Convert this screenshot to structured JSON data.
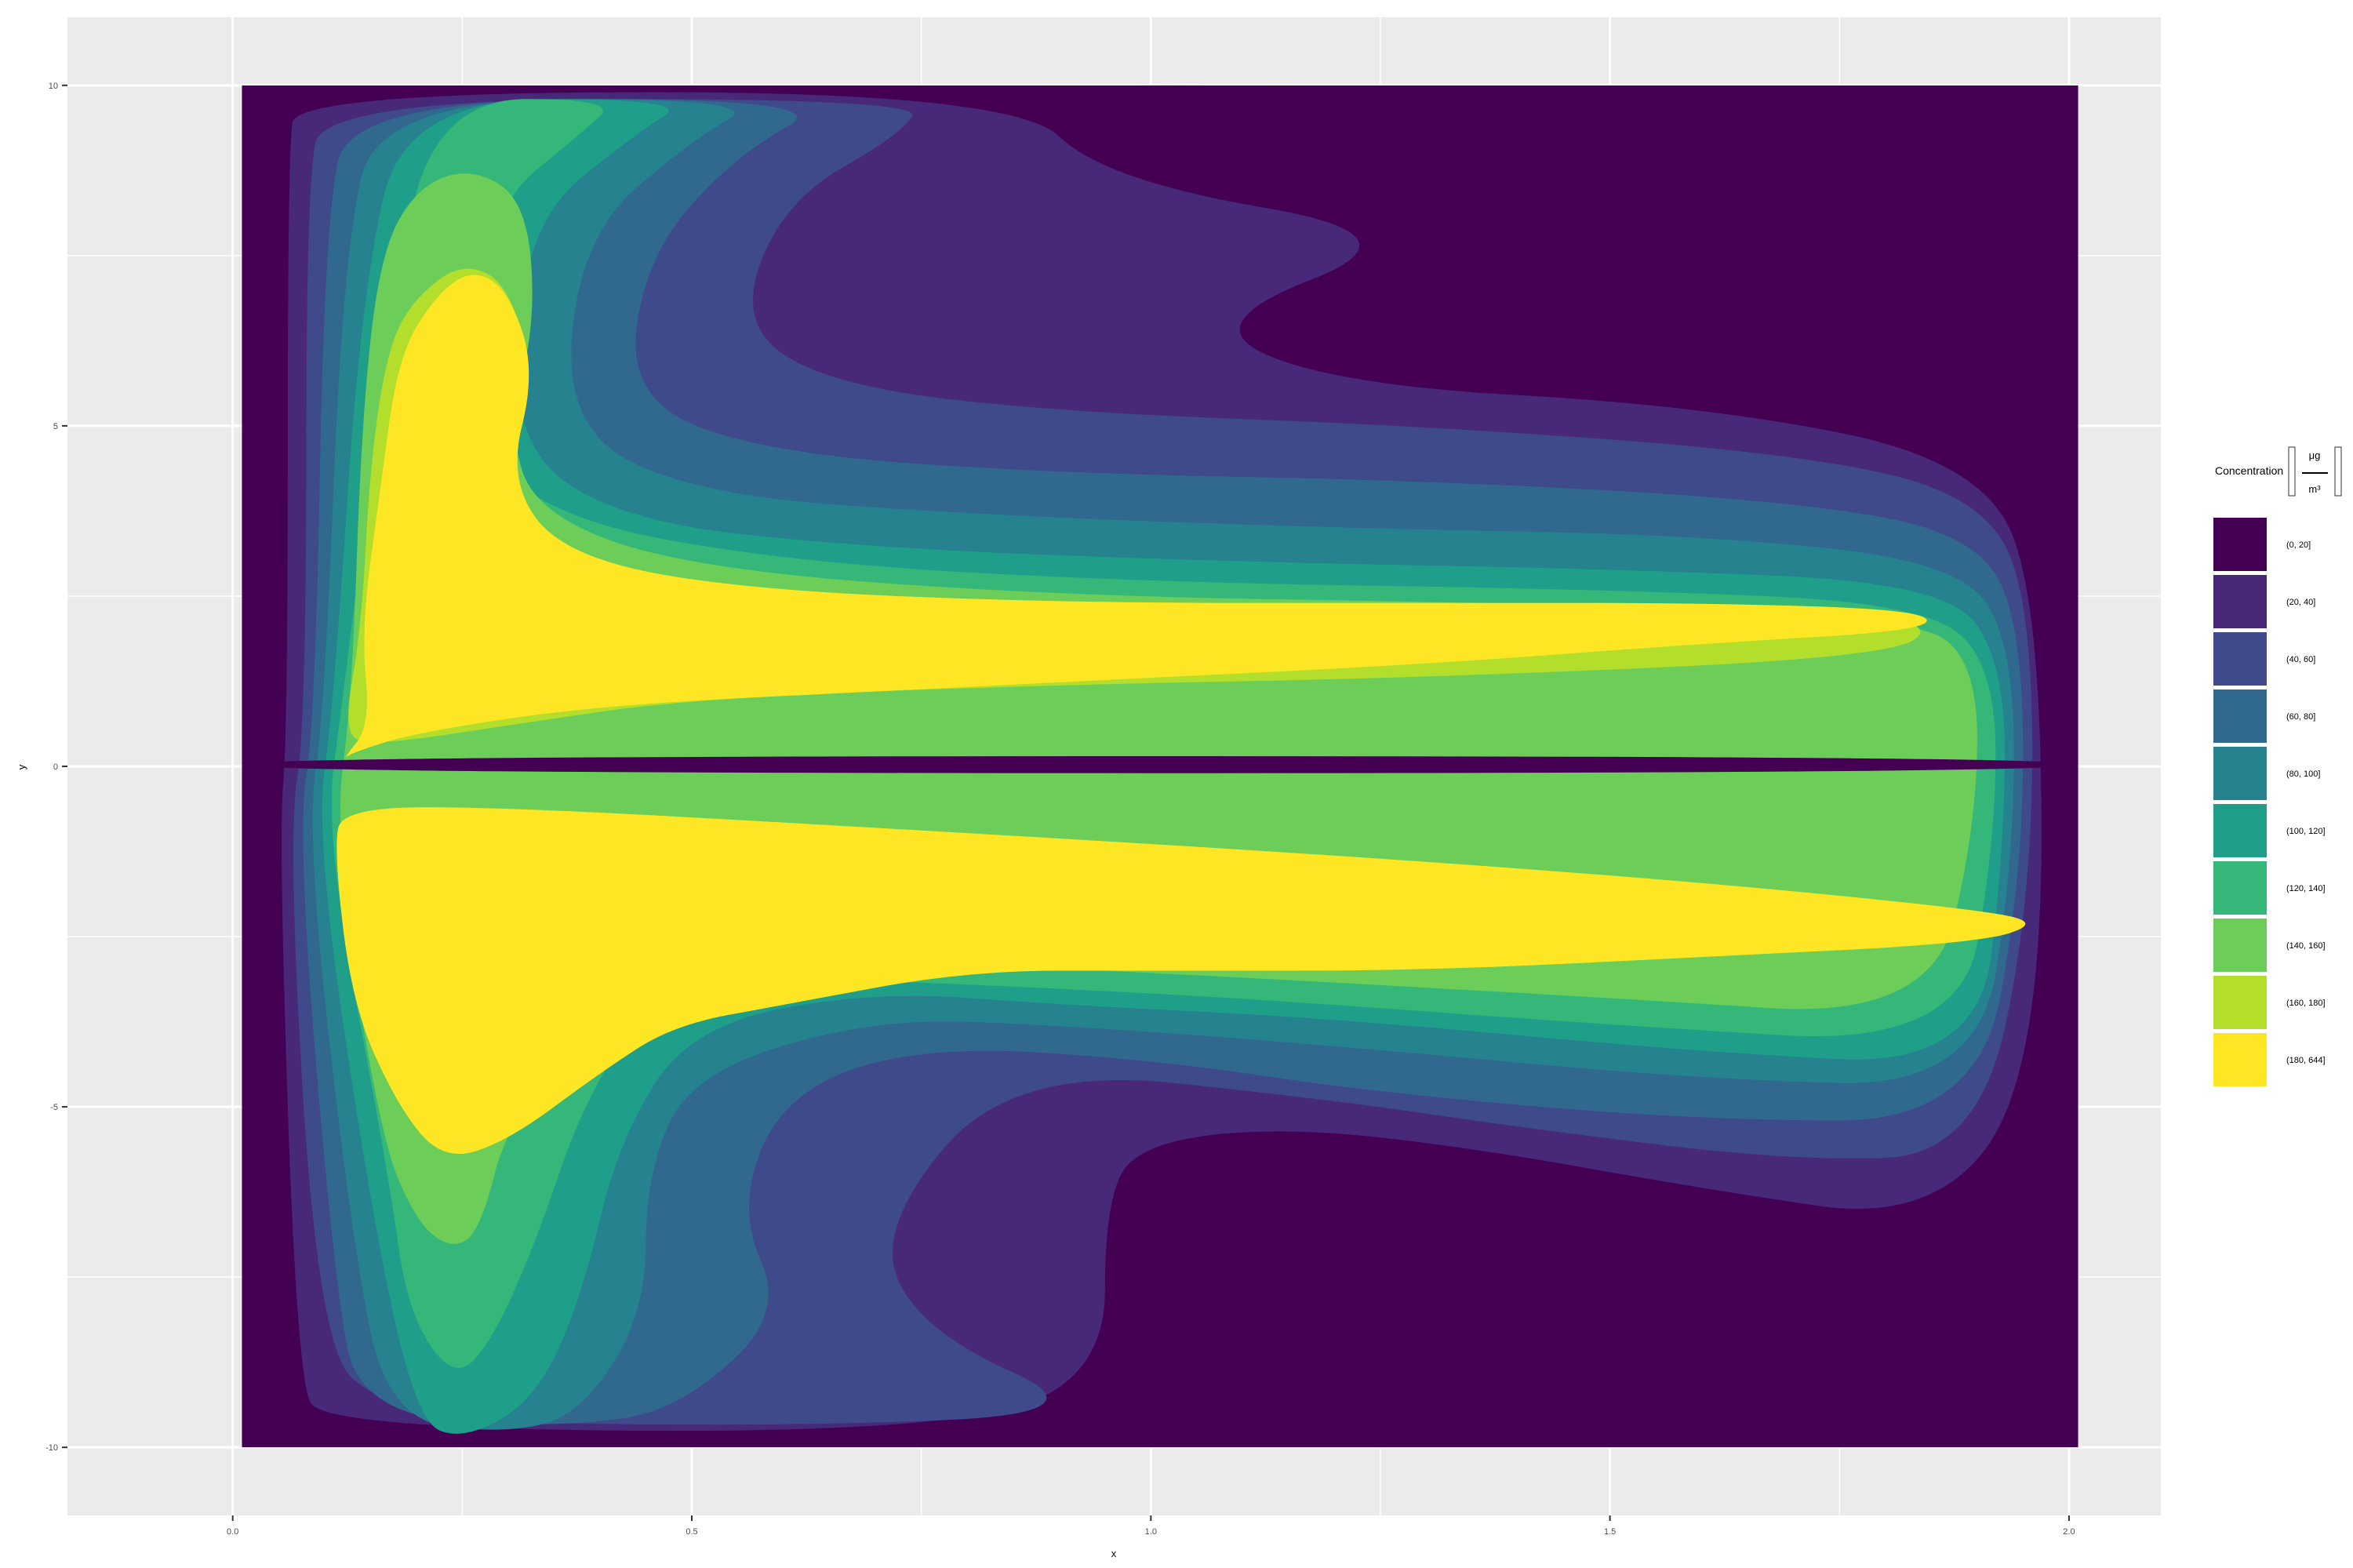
{
  "chart_data": {
    "type": "filled_contour",
    "xlabel": "x",
    "ylabel": "y",
    "xlim": [
      -0.18,
      2.1
    ],
    "ylim": [
      -11.0,
      11.0
    ],
    "xticks": [
      0.0,
      0.5,
      1.0,
      1.5,
      2.0
    ],
    "xtick_labels": [
      "0.0",
      "0.5",
      "1.0",
      "1.5",
      "2.0"
    ],
    "yticks": [
      -10,
      -5,
      0,
      5,
      10
    ],
    "ytick_labels": [
      "-10",
      "-5",
      "0",
      "5",
      "10"
    ],
    "data_extent": {
      "x": [
        0.01,
        2.01
      ],
      "y": [
        -10,
        10
      ]
    },
    "grid": true,
    "legend": {
      "title": "Concentration",
      "unit_numerator": "μg",
      "unit_denominator": "m³",
      "placement": "right",
      "levels": [
        {
          "label": "(0, 20]",
          "color": "#440154"
        },
        {
          "label": "(20, 40]",
          "color": "#482878"
        },
        {
          "label": "(40, 60]",
          "color": "#3E4A89"
        },
        {
          "label": "(60, 80]",
          "color": "#31688E"
        },
        {
          "label": "(80, 100]",
          "color": "#26828E"
        },
        {
          "label": "(100, 120]",
          "color": "#1F9E89"
        },
        {
          "label": "(120, 140]",
          "color": "#35B779"
        },
        {
          "label": "(140, 160]",
          "color": "#6DCD59"
        },
        {
          "label": "(160, 180]",
          "color": "#B4DE2C"
        },
        {
          "label": "(180, 644]",
          "color": "#FDE725"
        }
      ]
    },
    "contour_bands": [
      {
        "level": 1,
        "points": [
          [
            0.05,
            10
          ],
          [
            2.0,
            10
          ],
          [
            2.0,
            0.8
          ],
          [
            1.9,
            1.2
          ],
          [
            1.6,
            5.2
          ],
          [
            1.3,
            7.5
          ],
          [
            1.0,
            8.5
          ],
          [
            0.8,
            9.2
          ],
          [
            0.5,
            9.8
          ],
          [
            0.1,
            9.9
          ],
          [
            0.05,
            9.0
          ],
          [
            0.03,
            0.2
          ],
          [
            0.04,
            -0.3
          ],
          [
            0.04,
            -9.8
          ],
          [
            1.9,
            -9.9
          ],
          [
            2.0,
            -9.9
          ],
          [
            2.0,
            -1.0
          ],
          [
            1.9,
            -6.8
          ],
          [
            1.6,
            -7.0
          ],
          [
            1.3,
            -6.3
          ],
          [
            1.0,
            -6.0
          ],
          [
            0.8,
            -5.5
          ],
          [
            0.5,
            -4.7
          ],
          [
            0.15,
            -2.5
          ],
          [
            0.1,
            0.1
          ]
        ]
      },
      {
        "level": 2,
        "points": [
          [
            0.07,
            9.9
          ],
          [
            0.85,
            9.9
          ],
          [
            0.95,
            8.6
          ],
          [
            1.3,
            7.8
          ],
          [
            1.05,
            6.5
          ],
          [
            1.2,
            5.6
          ],
          [
            1.6,
            5.3
          ],
          [
            1.9,
            4.5
          ],
          [
            1.97,
            2.5
          ],
          [
            1.97,
            -4.5
          ],
          [
            1.85,
            -6.7
          ],
          [
            1.6,
            -6.2
          ],
          [
            1.35,
            -5.6
          ],
          [
            1.15,
            -5.3
          ],
          [
            1.0,
            -5.5
          ],
          [
            0.95,
            -6.2
          ],
          [
            0.95,
            -9.2
          ],
          [
            0.7,
            -9.8
          ],
          [
            0.1,
            -9.7
          ],
          [
            0.07,
            -9.0
          ],
          [
            0.05,
            -1.0
          ],
          [
            0.06,
            0.5
          ],
          [
            0.06,
            9.0
          ]
        ]
      },
      {
        "level": 3,
        "points": [
          [
            0.1,
            9.8
          ],
          [
            0.75,
            9.8
          ],
          [
            0.73,
            9.3
          ],
          [
            0.6,
            8.3
          ],
          [
            0.55,
            6.5
          ],
          [
            0.65,
            5.6
          ],
          [
            0.9,
            5.2
          ],
          [
            1.3,
            5.0
          ],
          [
            1.7,
            4.6
          ],
          [
            1.9,
            4.0
          ],
          [
            1.96,
            2.5
          ],
          [
            1.96,
            -2.0
          ],
          [
            1.9,
            -5.7
          ],
          [
            1.7,
            -5.8
          ],
          [
            1.4,
            -5.3
          ],
          [
            1.2,
            -4.9
          ],
          [
            0.85,
            -4.4
          ],
          [
            0.7,
            -6.8
          ],
          [
            0.75,
            -8.3
          ],
          [
            0.95,
            -9.5
          ],
          [
            0.6,
            -9.7
          ],
          [
            0.15,
            -9.6
          ],
          [
            0.09,
            -8.0
          ],
          [
            0.06,
            -1.0
          ],
          [
            0.08,
            0.6
          ],
          [
            0.08,
            8.5
          ]
        ]
      },
      {
        "level": 4,
        "points": [
          [
            0.13,
            9.8
          ],
          [
            0.66,
            9.8
          ],
          [
            0.55,
            9.0
          ],
          [
            0.45,
            7.5
          ],
          [
            0.43,
            5.4
          ],
          [
            0.58,
            4.6
          ],
          [
            0.9,
            4.3
          ],
          [
            1.3,
            4.2
          ],
          [
            1.7,
            3.9
          ],
          [
            1.9,
            3.4
          ],
          [
            1.95,
            2.0
          ],
          [
            1.95,
            -1.6
          ],
          [
            1.9,
            -5.2
          ],
          [
            1.6,
            -5.2
          ],
          [
            1.25,
            -4.8
          ],
          [
            1.0,
            -4.3
          ],
          [
            0.75,
            -4.1
          ],
          [
            0.6,
            -4.8
          ],
          [
            0.55,
            -6.5
          ],
          [
            0.6,
            -8.0
          ],
          [
            0.5,
            -9.3
          ],
          [
            0.4,
            -9.7
          ],
          [
            0.14,
            -9.6
          ],
          [
            0.11,
            -7.5
          ],
          [
            0.07,
            -1.0
          ],
          [
            0.09,
            0.7
          ],
          [
            0.1,
            8.0
          ]
        ]
      },
      {
        "level": 5,
        "points": [
          [
            0.16,
            9.8
          ],
          [
            0.58,
            9.8
          ],
          [
            0.5,
            9.2
          ],
          [
            0.38,
            7.8
          ],
          [
            0.36,
            5.0
          ],
          [
            0.5,
            4.0
          ],
          [
            0.8,
            3.7
          ],
          [
            1.2,
            3.5
          ],
          [
            1.6,
            3.4
          ],
          [
            1.88,
            3.0
          ],
          [
            1.94,
            1.8
          ],
          [
            1.94,
            -1.4
          ],
          [
            1.9,
            -4.7
          ],
          [
            1.6,
            -4.6
          ],
          [
            1.2,
            -4.1
          ],
          [
            0.9,
            -3.8
          ],
          [
            0.7,
            -3.7
          ],
          [
            0.5,
            -4.5
          ],
          [
            0.45,
            -6.0
          ],
          [
            0.45,
            -8.0
          ],
          [
            0.38,
            -9.5
          ],
          [
            0.3,
            -9.8
          ],
          [
            0.17,
            -9.6
          ],
          [
            0.13,
            -7.0
          ],
          [
            0.08,
            -1.0
          ],
          [
            0.1,
            0.8
          ],
          [
            0.12,
            7.5
          ]
        ]
      },
      {
        "level": 6,
        "points": [
          [
            0.19,
            9.8
          ],
          [
            0.5,
            9.8
          ],
          [
            0.44,
            9.3
          ],
          [
            0.32,
            8.0
          ],
          [
            0.3,
            4.8
          ],
          [
            0.42,
            3.6
          ],
          [
            0.7,
            3.2
          ],
          [
            1.1,
            3.0
          ],
          [
            1.5,
            2.9
          ],
          [
            1.86,
            2.7
          ],
          [
            1.93,
            1.6
          ],
          [
            1.93,
            -1.2
          ],
          [
            1.9,
            -4.4
          ],
          [
            1.6,
            -4.2
          ],
          [
            1.2,
            -3.7
          ],
          [
            0.9,
            -3.5
          ],
          [
            0.7,
            -3.3
          ],
          [
            0.5,
            -3.8
          ],
          [
            0.42,
            -5.5
          ],
          [
            0.38,
            -7.8
          ],
          [
            0.33,
            -9.3
          ],
          [
            0.25,
            -9.9
          ],
          [
            0.2,
            -9.6
          ],
          [
            0.15,
            -6.5
          ],
          [
            0.09,
            -1.0
          ],
          [
            0.11,
            0.9
          ],
          [
            0.14,
            7.0
          ]
        ]
      },
      {
        "level": 7,
        "points": [
          [
            0.22,
            9.8
          ],
          [
            0.42,
            9.8
          ],
          [
            0.38,
            9.3
          ],
          [
            0.28,
            8.2
          ],
          [
            0.25,
            5.2
          ],
          [
            0.33,
            3.7
          ],
          [
            0.6,
            3.0
          ],
          [
            1.0,
            2.7
          ],
          [
            1.5,
            2.6
          ],
          [
            1.84,
            2.4
          ],
          [
            1.92,
            1.5
          ],
          [
            1.92,
            -1.1
          ],
          [
            1.88,
            -4.1
          ],
          [
            1.5,
            -3.8
          ],
          [
            1.1,
            -3.4
          ],
          [
            0.8,
            -3.2
          ],
          [
            0.6,
            -3.1
          ],
          [
            0.45,
            -3.5
          ],
          [
            0.38,
            -5.0
          ],
          [
            0.33,
            -7.0
          ],
          [
            0.28,
            -8.5
          ],
          [
            0.24,
            -9.0
          ],
          [
            0.19,
            -8.0
          ],
          [
            0.17,
            -6.0
          ],
          [
            0.1,
            -1.0
          ],
          [
            0.12,
            1.0
          ],
          [
            0.17,
            6.5
          ]
        ]
      },
      {
        "level": 8,
        "points": [
          [
            0.16,
            7.5
          ],
          [
            0.2,
            8.5
          ],
          [
            0.26,
            8.8
          ],
          [
            0.32,
            8.3
          ],
          [
            0.33,
            6.5
          ],
          [
            0.3,
            5.0
          ],
          [
            0.33,
            3.7
          ],
          [
            0.5,
            2.9
          ],
          [
            0.9,
            2.5
          ],
          [
            1.4,
            2.4
          ],
          [
            1.82,
            2.2
          ],
          [
            1.9,
            1.6
          ],
          [
            1.9,
            -0.8
          ],
          [
            1.85,
            -3.7
          ],
          [
            1.5,
            -3.4
          ],
          [
            1.1,
            -3.1
          ],
          [
            0.8,
            -2.9
          ],
          [
            0.5,
            -2.9
          ],
          [
            0.4,
            -3.6
          ],
          [
            0.3,
            -5.2
          ],
          [
            0.27,
            -6.8
          ],
          [
            0.24,
            -7.1
          ],
          [
            0.2,
            -6.7
          ],
          [
            0.16,
            -5.4
          ],
          [
            0.11,
            -1.0
          ],
          [
            0.13,
            1.0
          ],
          [
            0.14,
            5.0
          ]
        ]
      },
      {
        "level": 9,
        "points": [
          [
            0.17,
            6.2
          ],
          [
            0.2,
            6.9
          ],
          [
            0.25,
            7.4
          ],
          [
            0.3,
            7.1
          ],
          [
            0.33,
            5.6
          ],
          [
            0.29,
            4.0
          ],
          [
            0.35,
            3.0
          ],
          [
            0.55,
            2.4
          ],
          [
            0.9,
            2.2
          ],
          [
            1.3,
            2.2
          ],
          [
            1.7,
            2.3
          ],
          [
            1.86,
            2.1
          ],
          [
            1.8,
            1.6
          ],
          [
            1.3,
            1.3
          ],
          [
            0.9,
            1.2
          ],
          [
            0.5,
            1.0
          ],
          [
            0.3,
            0.6
          ],
          [
            0.15,
            0.3
          ],
          [
            0.12,
            0.5
          ],
          [
            0.14,
            2.0
          ],
          [
            0.15,
            4.5
          ]
        ]
      },
      {
        "level": 10,
        "points": [
          [
            0.12,
            -0.6
          ],
          [
            0.3,
            -0.6
          ],
          [
            0.7,
            -0.9
          ],
          [
            1.2,
            -1.3
          ],
          [
            1.6,
            -1.7
          ],
          [
            1.9,
            -2.1
          ],
          [
            1.97,
            -2.3
          ],
          [
            1.9,
            -2.6
          ],
          [
            1.6,
            -2.8
          ],
          [
            1.3,
            -3.0
          ],
          [
            1.0,
            -3.0
          ],
          [
            0.8,
            -3.0
          ],
          [
            0.6,
            -3.5
          ],
          [
            0.48,
            -3.8
          ],
          [
            0.4,
            -4.5
          ],
          [
            0.3,
            -5.5
          ],
          [
            0.23,
            -5.8
          ],
          [
            0.18,
            -5.0
          ],
          [
            0.13,
            -3.5
          ],
          [
            0.11,
            -1.2
          ]
        ]
      },
      {
        "level": 10,
        "points": [
          [
            0.12,
            0.1
          ],
          [
            0.15,
            0.6
          ],
          [
            0.14,
            2.0
          ],
          [
            0.16,
            4.0
          ],
          [
            0.18,
            6.0
          ],
          [
            0.22,
            6.9
          ],
          [
            0.26,
            7.3
          ],
          [
            0.3,
            7.0
          ],
          [
            0.33,
            5.8
          ],
          [
            0.3,
            4.2
          ],
          [
            0.36,
            3.1
          ],
          [
            0.55,
            2.6
          ],
          [
            0.9,
            2.4
          ],
          [
            1.3,
            2.4
          ],
          [
            1.6,
            2.4
          ],
          [
            1.84,
            2.3
          ],
          [
            1.85,
            2.0
          ],
          [
            1.6,
            1.8
          ],
          [
            1.3,
            1.5
          ],
          [
            1.0,
            1.3
          ],
          [
            0.7,
            1.1
          ],
          [
            0.4,
            0.9
          ],
          [
            0.2,
            0.5
          ],
          [
            0.13,
            0.2
          ]
        ]
      },
      {
        "level": 1,
        "points": [
          [
            0.01,
            0.15
          ],
          [
            2.01,
            0.15
          ],
          [
            2.01,
            -0.1
          ],
          [
            0.01,
            -0.1
          ]
        ]
      }
    ]
  }
}
